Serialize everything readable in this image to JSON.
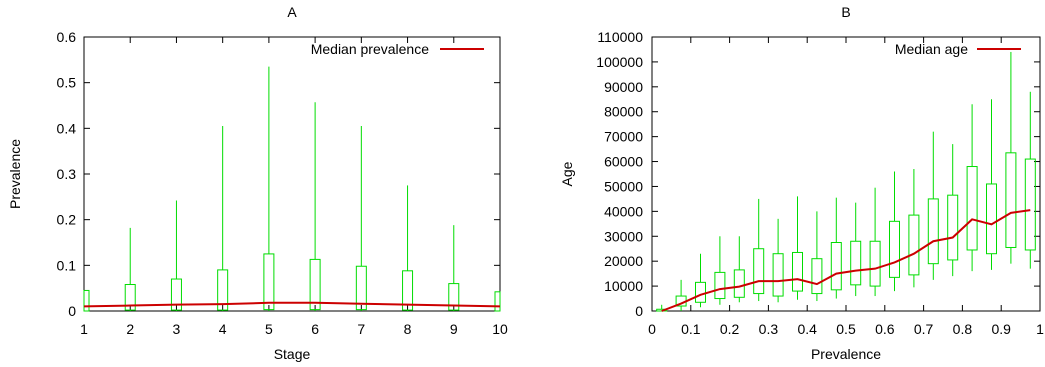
{
  "colors": {
    "box": "#00dd00",
    "median": "#cc0000",
    "axis": "#000000"
  },
  "chart_data": [
    {
      "type": "boxplot",
      "title": "A",
      "xlabel": "Stage",
      "ylabel": "Prevalence",
      "xlim": [
        1,
        10
      ],
      "ylim": [
        0,
        0.6
      ],
      "xticks": [
        1,
        2,
        3,
        4,
        5,
        6,
        7,
        8,
        9,
        10
      ],
      "yticks": [
        "0",
        "0.1",
        "0.2",
        "0.3",
        "0.4",
        "0.5",
        "0.6"
      ],
      "grid": false,
      "legend": {
        "position": "top-right",
        "median_label": "Median prevalence"
      },
      "boxes": [
        {
          "x": 1,
          "min": 0.0,
          "q1": 0.0,
          "q3": 0.045,
          "max": 0.045
        },
        {
          "x": 2,
          "min": 0.0,
          "q1": 0.002,
          "q3": 0.058,
          "max": 0.182
        },
        {
          "x": 3,
          "min": 0.0,
          "q1": 0.002,
          "q3": 0.07,
          "max": 0.242
        },
        {
          "x": 4,
          "min": 0.0,
          "q1": 0.002,
          "q3": 0.09,
          "max": 0.405
        },
        {
          "x": 5,
          "min": 0.0,
          "q1": 0.003,
          "q3": 0.125,
          "max": 0.535
        },
        {
          "x": 6,
          "min": 0.0,
          "q1": 0.003,
          "q3": 0.113,
          "max": 0.457
        },
        {
          "x": 7,
          "min": 0.0,
          "q1": 0.003,
          "q3": 0.098,
          "max": 0.405
        },
        {
          "x": 8,
          "min": 0.0,
          "q1": 0.002,
          "q3": 0.088,
          "max": 0.275
        },
        {
          "x": 9,
          "min": 0.0,
          "q1": 0.002,
          "q3": 0.06,
          "max": 0.188
        },
        {
          "x": 10,
          "min": 0.0,
          "q1": 0.0,
          "q3": 0.042,
          "max": 0.042
        }
      ],
      "median_line": {
        "x": [
          1,
          2,
          3,
          4,
          5,
          6,
          7,
          8,
          9,
          10
        ],
        "y": [
          0.01,
          0.012,
          0.014,
          0.015,
          0.018,
          0.018,
          0.016,
          0.014,
          0.012,
          0.01
        ]
      }
    },
    {
      "type": "boxplot",
      "title": "B",
      "xlabel": "Prevalence",
      "ylabel": "Age",
      "xlim": [
        0,
        1
      ],
      "ylim": [
        0,
        110000
      ],
      "xticks": [
        "0",
        "0.1",
        "0.2",
        "0.3",
        "0.4",
        "0.5",
        "0.6",
        "0.7",
        "0.8",
        "0.9",
        "1"
      ],
      "yticks": [
        "0",
        "10000",
        "20000",
        "30000",
        "40000",
        "50000",
        "60000",
        "70000",
        "80000",
        "90000",
        "100000",
        "110000"
      ],
      "grid": false,
      "legend": {
        "position": "top-right",
        "median_label": "Median age"
      },
      "boxes": [
        {
          "x": 0.025,
          "min": 0,
          "q1": 0,
          "q3": 700,
          "max": 2500
        },
        {
          "x": 0.075,
          "min": 0,
          "q1": 2000,
          "q3": 6000,
          "max": 12500
        },
        {
          "x": 0.125,
          "min": 1500,
          "q1": 3500,
          "q3": 11500,
          "max": 23000
        },
        {
          "x": 0.175,
          "min": 2500,
          "q1": 5000,
          "q3": 15500,
          "max": 30000
        },
        {
          "x": 0.225,
          "min": 3500,
          "q1": 5500,
          "q3": 16500,
          "max": 30000
        },
        {
          "x": 0.275,
          "min": 4000,
          "q1": 7000,
          "q3": 25000,
          "max": 45000
        },
        {
          "x": 0.325,
          "min": 3500,
          "q1": 6000,
          "q3": 23000,
          "max": 37000
        },
        {
          "x": 0.375,
          "min": 4500,
          "q1": 8000,
          "q3": 23500,
          "max": 46000
        },
        {
          "x": 0.425,
          "min": 4000,
          "q1": 7000,
          "q3": 21000,
          "max": 40000
        },
        {
          "x": 0.475,
          "min": 5000,
          "q1": 8500,
          "q3": 27500,
          "max": 45500
        },
        {
          "x": 0.525,
          "min": 6000,
          "q1": 10500,
          "q3": 28000,
          "max": 43500
        },
        {
          "x": 0.575,
          "min": 6000,
          "q1": 10000,
          "q3": 28000,
          "max": 49500
        },
        {
          "x": 0.625,
          "min": 8000,
          "q1": 13500,
          "q3": 36000,
          "max": 56000
        },
        {
          "x": 0.675,
          "min": 9500,
          "q1": 14500,
          "q3": 38500,
          "max": 57000
        },
        {
          "x": 0.725,
          "min": 12500,
          "q1": 19000,
          "q3": 45000,
          "max": 72000
        },
        {
          "x": 0.775,
          "min": 14000,
          "q1": 20500,
          "q3": 46500,
          "max": 67000
        },
        {
          "x": 0.825,
          "min": 16000,
          "q1": 24500,
          "q3": 58000,
          "max": 83000
        },
        {
          "x": 0.875,
          "min": 16500,
          "q1": 23000,
          "q3": 51000,
          "max": 85000
        },
        {
          "x": 0.925,
          "min": 19000,
          "q1": 25500,
          "q3": 63500,
          "max": 104000
        },
        {
          "x": 0.975,
          "min": 17000,
          "q1": 24500,
          "q3": 61000,
          "max": 88000
        }
      ],
      "median_line": {
        "x": [
          0.025,
          0.075,
          0.125,
          0.175,
          0.225,
          0.275,
          0.325,
          0.375,
          0.425,
          0.475,
          0.525,
          0.575,
          0.625,
          0.675,
          0.725,
          0.775,
          0.825,
          0.875,
          0.925,
          0.975
        ],
        "y": [
          0,
          3000,
          6500,
          8800,
          9800,
          12000,
          12000,
          12800,
          10800,
          15000,
          16200,
          17000,
          19500,
          23000,
          28000,
          29500,
          36800,
          34800,
          39400,
          40500
        ]
      }
    }
  ]
}
